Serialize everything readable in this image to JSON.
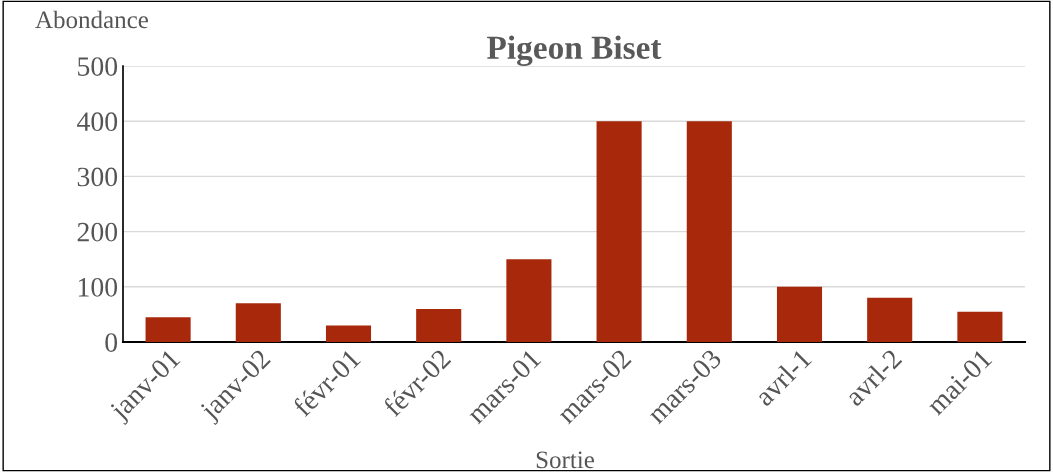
{
  "chart_data": {
    "type": "bar",
    "title": "Pigeon Biset",
    "xlabel": "Sortie",
    "ylabel": "Abondance",
    "categories": [
      "janv-01",
      "janv-02",
      "févr-01",
      "févr-02",
      "mars-01",
      "mars-02",
      "mars-03",
      "avrl-1",
      "avrl-2",
      "mai-01"
    ],
    "values": [
      45,
      70,
      30,
      60,
      150,
      400,
      400,
      100,
      80,
      55
    ],
    "color": "#a8280c",
    "ylim": [
      0,
      500
    ],
    "yticks": [
      0,
      100,
      200,
      300,
      400,
      500
    ],
    "grid": "y",
    "legend": false
  }
}
